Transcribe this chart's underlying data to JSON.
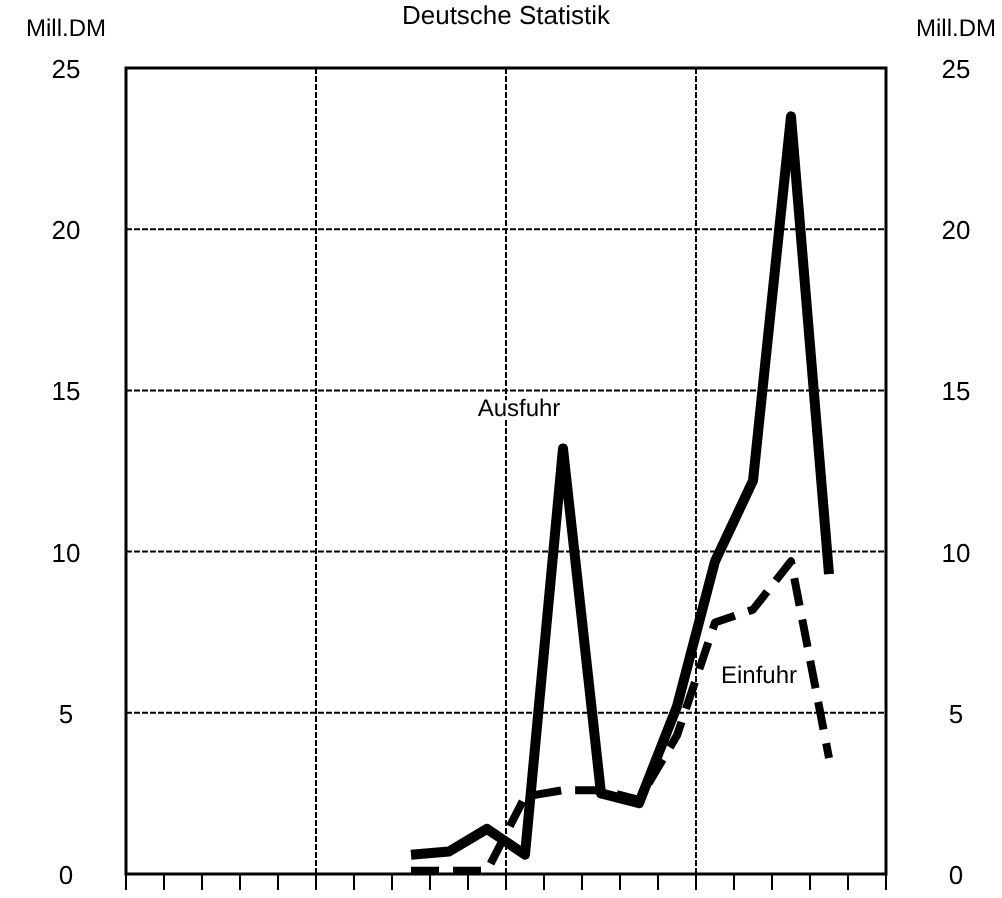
{
  "chart_data": {
    "type": "line",
    "title": "Deutsche Statistik",
    "ylabel": "Mill.DM",
    "y2label": "Mill.DM",
    "categories": [
      null,
      null,
      null,
      null,
      null,
      null,
      null,
      null,
      null,
      null,
      null,
      null,
      null,
      null,
      null,
      null,
      null,
      null,
      null,
      null
    ],
    "ylim": [
      0,
      25
    ],
    "yticks": [
      0,
      5,
      10,
      15,
      20,
      25
    ],
    "y2lim": [
      0,
      25
    ],
    "y2ticks": [
      0,
      5,
      10,
      15,
      20,
      25
    ],
    "grid": true,
    "marker": "none",
    "series": [
      {
        "name": "Ausfuhr",
        "color": "#000000",
        "line_style": "solid",
        "values": [
          null,
          null,
          null,
          null,
          null,
          null,
          null,
          0.6,
          0.7,
          1.4,
          0.6,
          13.2,
          2.5,
          2.2,
          5.2,
          9.7,
          12.2,
          23.5,
          9.3,
          null
        ]
      },
      {
        "name": "Einfuhr",
        "color": "#000000",
        "line_style": "dashed",
        "values": [
          null,
          null,
          null,
          null,
          null,
          null,
          null,
          0.1,
          0.1,
          0.1,
          2.4,
          2.6,
          2.6,
          2.3,
          4.3,
          7.8,
          8.2,
          9.7,
          3.6,
          null
        ]
      }
    ]
  }
}
